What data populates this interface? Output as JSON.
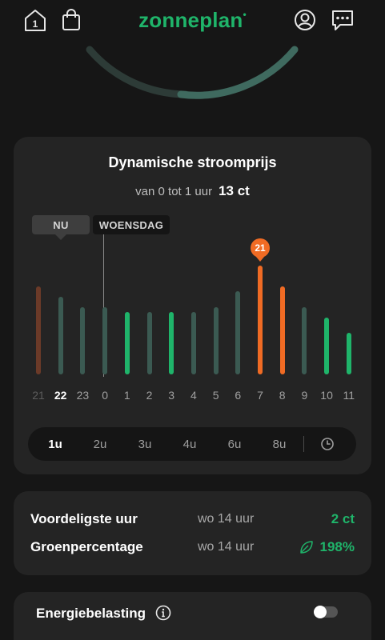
{
  "header": {
    "logo_text": "zonneplan",
    "cart_count": "1"
  },
  "price_card": {
    "title": "Dynamische stroomprijs",
    "subtitle": "van 0 tot 1 uur",
    "current_price": "13 ct",
    "now_chip": "NU",
    "day_chip": "WOENSDAG",
    "peak_badge": "21",
    "hours": [
      "21",
      "22",
      "23",
      "0",
      "1",
      "2",
      "3",
      "4",
      "5",
      "6",
      "7",
      "8",
      "9",
      "10",
      "11"
    ],
    "ranges": [
      "1u",
      "2u",
      "3u",
      "4u",
      "6u",
      "8u"
    ],
    "active_range": "1u"
  },
  "chart_data": {
    "type": "bar",
    "categories": [
      "21",
      "22",
      "23",
      "0",
      "1",
      "2",
      "3",
      "4",
      "5",
      "6",
      "7",
      "8",
      "9",
      "10",
      "11"
    ],
    "values": [
      17,
      15,
      13,
      13,
      12,
      12,
      12,
      12,
      13,
      16,
      21,
      17,
      13,
      11,
      8
    ],
    "bar_colors": [
      "#6b3a28",
      "#3b5a52",
      "#3b5a52",
      "#3b5a52",
      "#1fb46a",
      "#3b5a52",
      "#1fb46a",
      "#3b5a52",
      "#3b5a52",
      "#3b5a52",
      "#f06b24",
      "#f06b24",
      "#3b5a52",
      "#1fb46a",
      "#1fb46a"
    ],
    "ylim": [
      0,
      21
    ]
  },
  "summary": {
    "cheapest_label": "Voordeligste uur",
    "cheapest_time": "wo 14 uur",
    "cheapest_value": "2 ct",
    "green_label": "Groenpercentage",
    "green_time": "wo 14 uur",
    "green_value": "198%"
  },
  "tax": {
    "label": "Energiebelasting",
    "enabled": false
  },
  "colors": {
    "accent": "#1fb46a",
    "peak": "#f06b24",
    "card": "#242424",
    "background": "#161616"
  }
}
